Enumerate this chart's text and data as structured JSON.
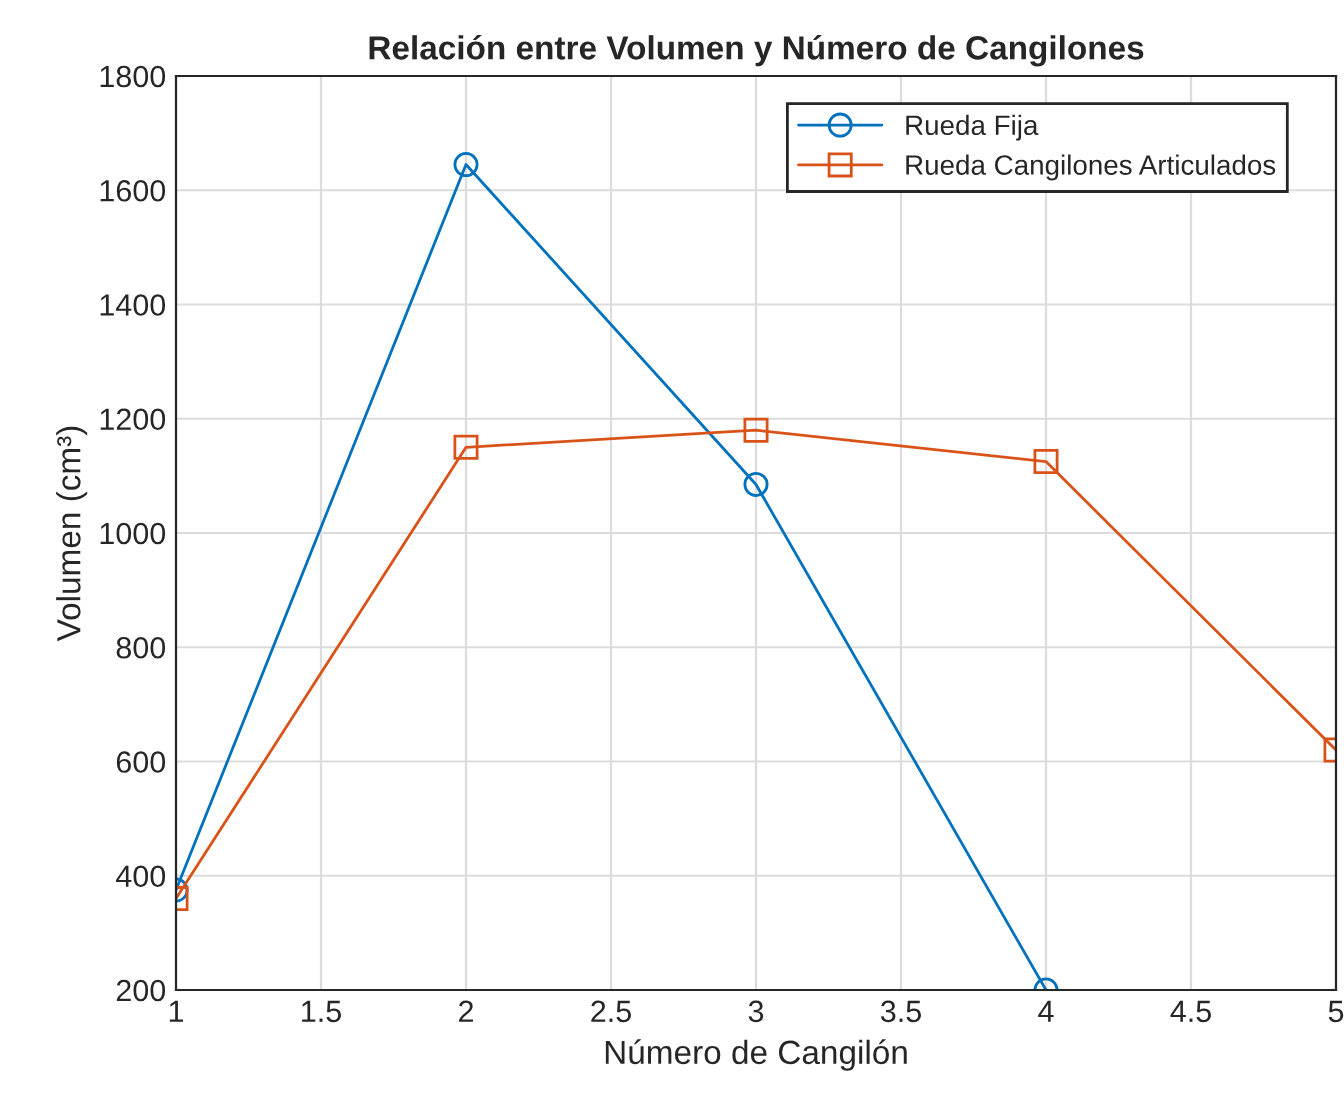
{
  "chart_data": {
    "type": "line",
    "title": "Relación entre Volumen y Número de Cangilones",
    "xlabel": "Número de Cangilón",
    "ylabel": "Volumen (cm³)",
    "xlim": [
      1,
      5
    ],
    "xticks": [
      1,
      1.5,
      2,
      2.5,
      3,
      3.5,
      4,
      4.5,
      5
    ],
    "ylim": [
      200,
      1800
    ],
    "yticks": [
      200,
      400,
      600,
      800,
      1000,
      1200,
      1400,
      1600,
      1800
    ],
    "grid": true,
    "legend": "top right",
    "line_style": "solid",
    "series": [
      {
        "name": "Rueda Fija",
        "color": "#0072bd",
        "marker": "circle",
        "x": [
          1,
          2,
          3,
          4
        ],
        "values": [
          375,
          1645,
          1085,
          200
        ]
      },
      {
        "name": "Rueda Cangilones Articulados",
        "color": "#d95319",
        "marker": "square",
        "x": [
          1,
          2,
          3,
          4,
          5
        ],
        "values": [
          360,
          1150,
          1180,
          1125,
          620
        ]
      }
    ]
  }
}
